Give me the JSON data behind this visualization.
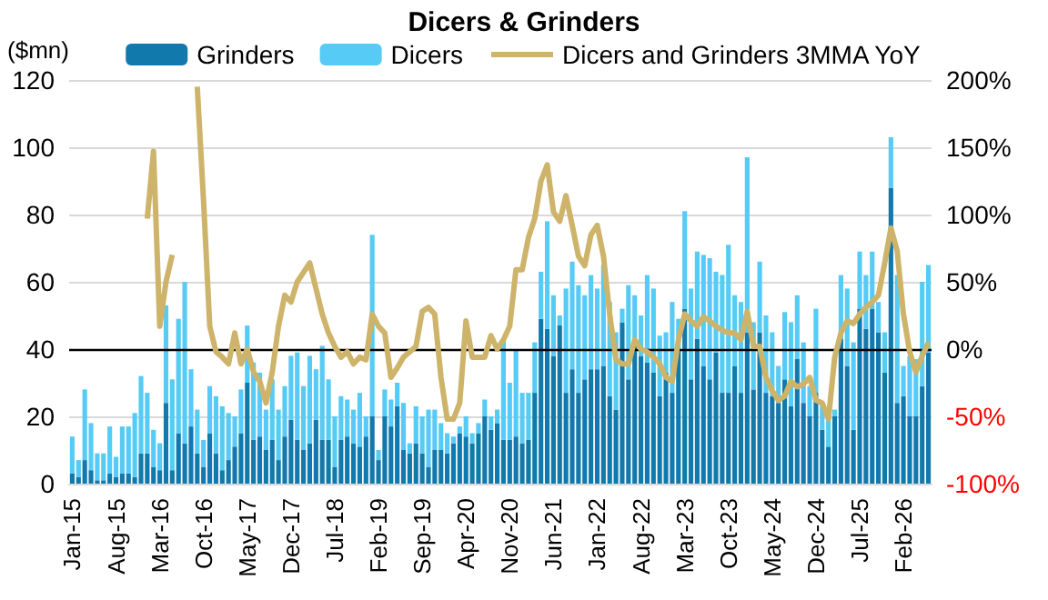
{
  "chart_data": {
    "type": "bar",
    "title": "Dicers & Grinders",
    "ylabel": "($mn)",
    "categories": [
      "Jan-15",
      null,
      null,
      null,
      null,
      null,
      null,
      "Aug-15",
      null,
      null,
      null,
      null,
      null,
      null,
      "Mar-16",
      null,
      null,
      null,
      null,
      null,
      null,
      "Oct-16",
      null,
      null,
      null,
      null,
      null,
      null,
      "May-17",
      null,
      null,
      null,
      null,
      null,
      null,
      "Dec-17",
      null,
      null,
      null,
      null,
      null,
      null,
      "Jul-18",
      null,
      null,
      null,
      null,
      null,
      null,
      "Feb-19",
      null,
      null,
      null,
      null,
      null,
      null,
      "Sep-19",
      null,
      null,
      null,
      null,
      null,
      null,
      "Apr-20",
      null,
      null,
      null,
      null,
      null,
      null,
      "Nov-20",
      null,
      null,
      null,
      null,
      null,
      null,
      "Jun-21",
      null,
      null,
      null,
      null,
      null,
      null,
      "Jan-22",
      null,
      null,
      null,
      null,
      null,
      null,
      "Aug-22",
      null,
      null,
      null,
      null,
      null,
      null,
      "Mar-23",
      null,
      null,
      null,
      null,
      null,
      null,
      "Oct-23",
      null,
      null,
      null,
      null,
      null,
      null,
      "May-24",
      null,
      null,
      null,
      null,
      null,
      null,
      "Dec-24",
      null,
      null,
      null,
      null,
      null,
      null,
      "Jul-25",
      null,
      null,
      null,
      null,
      null,
      null,
      "Feb-26",
      null,
      null,
      null,
      null
    ],
    "stacked": true,
    "series": [
      {
        "name": "Grinders",
        "color": "#1279ad",
        "values": [
          3,
          2,
          7,
          4,
          1,
          1,
          3,
          2,
          3,
          3,
          2,
          9,
          9,
          5,
          4,
          24,
          4,
          15,
          12,
          17,
          9,
          5,
          15,
          9,
          4,
          7,
          11,
          15,
          30,
          13,
          14,
          10,
          13,
          7,
          14,
          19,
          13,
          10,
          12,
          19,
          13,
          13,
          5,
          13,
          14,
          12,
          11,
          14,
          20,
          7,
          20,
          17,
          23,
          10,
          9,
          12,
          9,
          5,
          10,
          10,
          9,
          12,
          15,
          14,
          12,
          15,
          20,
          16,
          18,
          13,
          13,
          14,
          12,
          13,
          27,
          49,
          46,
          38,
          47,
          27,
          34,
          27,
          31,
          34,
          34,
          35,
          26,
          22,
          48,
          31,
          41,
          38,
          36,
          33,
          26,
          33,
          27,
          40,
          52,
          31,
          43,
          35,
          31,
          39,
          27,
          27,
          35,
          27,
          45,
          28,
          45,
          27,
          26,
          24,
          31,
          23,
          37,
          24,
          20,
          27,
          16,
          11,
          20,
          43,
          35,
          16,
          52,
          46,
          52,
          45,
          33,
          88,
          24,
          26,
          20,
          20,
          29,
          39
        ]
      },
      {
        "name": "Dicers",
        "color": "#55cbf5",
        "values": [
          11,
          5,
          21,
          14,
          8,
          8,
          14,
          6,
          14,
          14,
          19,
          23,
          18,
          11,
          8,
          29,
          27,
          34,
          48,
          17,
          13,
          8,
          14,
          17,
          19,
          14,
          9,
          13,
          17,
          23,
          19,
          12,
          18,
          15,
          15,
          19,
          26,
          19,
          26,
          15,
          28,
          18,
          15,
          13,
          11,
          10,
          16,
          6,
          54,
          3,
          8,
          8,
          7,
          14,
          3,
          11,
          11,
          17,
          12,
          8,
          6,
          2,
          2,
          6,
          3,
          3,
          5,
          4,
          4,
          30,
          17,
          26,
          15,
          14,
          15,
          14,
          32,
          18,
          3,
          31,
          32,
          32,
          25,
          28,
          24,
          30,
          28,
          23,
          4,
          28,
          15,
          12,
          26,
          25,
          18,
          12,
          27,
          9,
          29,
          27,
          26,
          33,
          36,
          24,
          35,
          44,
          21,
          27,
          52,
          20,
          21,
          23,
          19,
          11,
          20,
          25,
          19,
          18,
          9,
          25,
          8,
          9,
          2,
          19,
          23,
          26,
          17,
          16,
          17,
          9,
          12,
          15,
          38,
          9,
          18,
          17,
          31,
          26
        ]
      },
      {
        "name": "Dicers and Grinders 3MMA YoY",
        "type": "line",
        "axis": "y2",
        "color": "#cdb46a",
        "marker": "none",
        "values": [
          null,
          null,
          null,
          null,
          null,
          null,
          null,
          null,
          null,
          null,
          null,
          null,
          97,
          147,
          17,
          50,
          70,
          null,
          null,
          null,
          195,
          111,
          17,
          -2,
          -6,
          -11,
          12,
          -11,
          0,
          -17,
          -24,
          -40,
          -17,
          17,
          40,
          35,
          50,
          57,
          64,
          45,
          26,
          12,
          2,
          -6,
          -2,
          -11,
          -6,
          -8,
          26,
          17,
          12,
          -21,
          -14,
          -6,
          -2,
          2,
          28,
          31,
          26,
          -21,
          -52,
          -52,
          -40,
          21,
          -6,
          -6,
          -6,
          10,
          0,
          7,
          17,
          59,
          59,
          83,
          97,
          125,
          137,
          102,
          95,
          114,
          92,
          69,
          62,
          85,
          92,
          69,
          26,
          -8,
          -11,
          -11,
          7,
          0,
          -2,
          -6,
          -11,
          -21,
          -24,
          7,
          26,
          21,
          17,
          24,
          21,
          17,
          14,
          12,
          12,
          7,
          28,
          2,
          2,
          -21,
          -31,
          -38,
          -35,
          -24,
          -28,
          -26,
          -21,
          -38,
          -40,
          -52,
          -6,
          12,
          21,
          19,
          26,
          31,
          35,
          40,
          64,
          90,
          73,
          26,
          -2,
          -17,
          -5,
          5
        ]
      }
    ],
    "ylim": [
      0,
      120
    ],
    "yticks": [
      0,
      20,
      40,
      60,
      80,
      100,
      120
    ],
    "y2lim": [
      -100,
      200
    ],
    "y2ticks": [
      {
        "value": -100,
        "label": "-100%"
      },
      {
        "value": -50,
        "label": "-50%"
      },
      {
        "value": 0,
        "label": "0%"
      },
      {
        "value": 50,
        "label": "50%"
      },
      {
        "value": 100,
        "label": "100%"
      },
      {
        "value": 150,
        "label": "150%"
      },
      {
        "value": 200,
        "label": "200%"
      }
    ],
    "ref_lines": [
      {
        "axis": "y2",
        "value": 0,
        "color": "#000000"
      }
    ],
    "grid": "y",
    "legend": "top"
  }
}
